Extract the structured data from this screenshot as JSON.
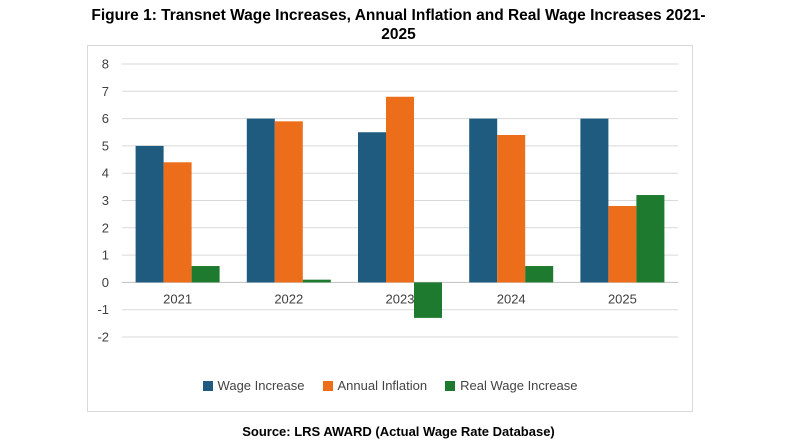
{
  "title_line1": "Figure 1: Transnet Wage Increases, Annual Inflation and Real Wage Increases 2021-",
  "title_line2": "2025",
  "source": "Source: LRS AWARD (Actual Wage Rate Database)",
  "colors": {
    "Wage Increase": "#1f5b7f",
    "Annual Inflation": "#ed6e1a",
    "Real Wage Increase": "#1e7a2e",
    "grid": "#d9d9d9",
    "axis": "#bfbfbf"
  },
  "chart_data": {
    "type": "bar",
    "title": "Figure 1: Transnet Wage Increases, Annual Inflation and Real Wage Increases 2021-2025",
    "categories": [
      "2021",
      "2022",
      "2023",
      "2024",
      "2025"
    ],
    "series": [
      {
        "name": "Wage Increase",
        "values": [
          5.0,
          6.0,
          5.5,
          6.0,
          6.0
        ]
      },
      {
        "name": "Annual Inflation",
        "values": [
          4.4,
          5.9,
          6.8,
          5.4,
          2.8
        ]
      },
      {
        "name": "Real Wage Increase",
        "values": [
          0.6,
          0.1,
          -1.3,
          0.6,
          3.2
        ]
      }
    ],
    "ylim": [
      -2,
      8
    ],
    "yticks": [
      8,
      7,
      6,
      5,
      4,
      3,
      2,
      1,
      0,
      -1,
      -2
    ],
    "grid": true,
    "legend_position": "bottom",
    "xlabel": "",
    "ylabel": ""
  }
}
